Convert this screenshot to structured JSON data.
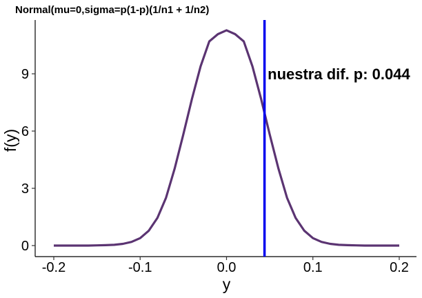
{
  "chart_data": {
    "type": "line",
    "title": "Normal(mu=0,sigma=p(1-p)(1/n1 + 1/n2)",
    "xlabel": "y",
    "ylabel": "f(y)",
    "xlim": [
      -0.2,
      0.2
    ],
    "ylim": [
      0,
      11.3
    ],
    "xticks": [
      -0.2,
      -0.1,
      0.0,
      0.1,
      0.2
    ],
    "xtick_labels": [
      "-0.2",
      "-0.1",
      "0.0",
      "0.1",
      "0.2"
    ],
    "yticks": [
      0,
      3,
      6,
      9
    ],
    "ytick_labels": [
      "0",
      "3",
      "6",
      "9"
    ],
    "grid": false,
    "series": [
      {
        "color": "#5b3472",
        "x": [
          -0.2,
          -0.19,
          -0.18,
          -0.17,
          -0.16,
          -0.15,
          -0.14,
          -0.13,
          -0.12,
          -0.11,
          -0.1,
          -0.09,
          -0.08,
          -0.07,
          -0.06,
          -0.05,
          -0.04,
          -0.03,
          -0.02,
          -0.01,
          0.0,
          0.01,
          0.02,
          0.03,
          0.04,
          0.05,
          0.06,
          0.07,
          0.08,
          0.09,
          0.1,
          0.11,
          0.12,
          0.13,
          0.14,
          0.15,
          0.16,
          0.17,
          0.18,
          0.19,
          0.2
        ],
        "y": [
          0.0,
          0.0,
          0.0,
          0.0,
          0.0,
          0.01,
          0.02,
          0.04,
          0.09,
          0.19,
          0.39,
          0.78,
          1.45,
          2.51,
          4.05,
          5.83,
          7.69,
          9.39,
          10.7,
          11.08,
          11.28,
          11.08,
          10.7,
          9.39,
          7.69,
          5.83,
          4.05,
          2.51,
          1.45,
          0.78,
          0.39,
          0.19,
          0.09,
          0.04,
          0.02,
          0.01,
          0.0,
          0.0,
          0.0,
          0.0,
          0.0
        ]
      }
    ],
    "vline": {
      "x": 0.044,
      "color": "#0000ee"
    },
    "annotation": {
      "text": "nuestra dif. p: 0.044",
      "x": 0.05,
      "y": 9.0
    }
  }
}
